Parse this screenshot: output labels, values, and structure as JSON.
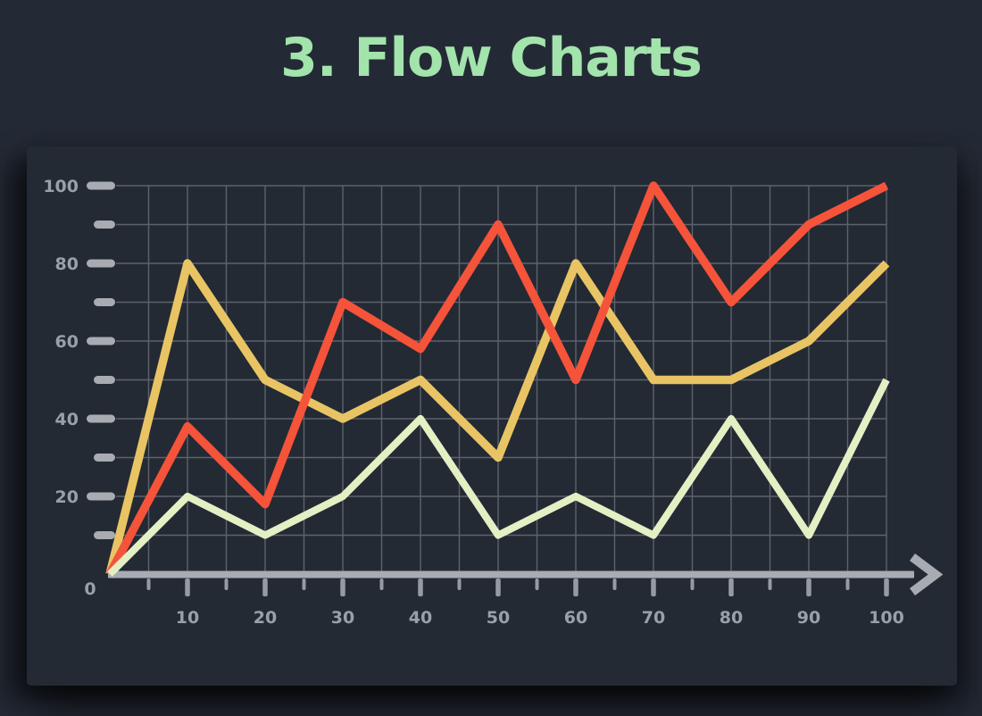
{
  "page": {
    "title": "3. Flow Charts"
  },
  "colors": {
    "background": "#242a35",
    "panel": "#232a34",
    "title": "#a2e4ac",
    "axis": "#a8acb2",
    "minor_tick": "#969ba3",
    "tick_label": "#9aa0a8",
    "grid": "#5d636d"
  },
  "chart_data": {
    "type": "line",
    "title": "3. Flow Charts",
    "x": [
      0,
      10,
      20,
      30,
      40,
      50,
      60,
      70,
      80,
      90,
      100
    ],
    "series": [
      {
        "name": "gold-line",
        "color": "#e9c464",
        "values": [
          0,
          80,
          50,
          40,
          50,
          30,
          80,
          50,
          50,
          60,
          80
        ]
      },
      {
        "name": "red-line",
        "color": "#f5533a",
        "values": [
          0,
          38,
          18,
          70,
          58,
          90,
          50,
          100,
          70,
          90,
          100
        ]
      },
      {
        "name": "green-line",
        "color": "#e3f0c3",
        "values": [
          0,
          20,
          10,
          20,
          40,
          10,
          20,
          10,
          40,
          10,
          50
        ]
      }
    ],
    "xlabel": "",
    "ylabel": "",
    "xlim": [
      0,
      100
    ],
    "ylim": [
      0,
      100
    ],
    "grid": "on",
    "x_grid_step": 5,
    "y_grid_step": 10,
    "legend": "none",
    "axis_labels": {
      "origin": "0",
      "x_ticks": [
        {
          "text": "10",
          "value": 10
        },
        {
          "text": "20",
          "value": 20
        },
        {
          "text": "30",
          "value": 30
        },
        {
          "text": "40",
          "value": 40
        },
        {
          "text": "50",
          "value": 50
        },
        {
          "text": "60",
          "value": 60
        },
        {
          "text": "70",
          "value": 70
        },
        {
          "text": "80",
          "value": 80
        },
        {
          "text": "90",
          "value": 90
        },
        {
          "text": "100",
          "value": 100
        }
      ],
      "y_ticks": [
        {
          "text": "20",
          "value": 20
        },
        {
          "text": "40",
          "value": 40
        },
        {
          "text": "60",
          "value": 60
        },
        {
          "text": "80",
          "value": 80
        },
        {
          "text": "100",
          "value": 100
        }
      ]
    }
  }
}
